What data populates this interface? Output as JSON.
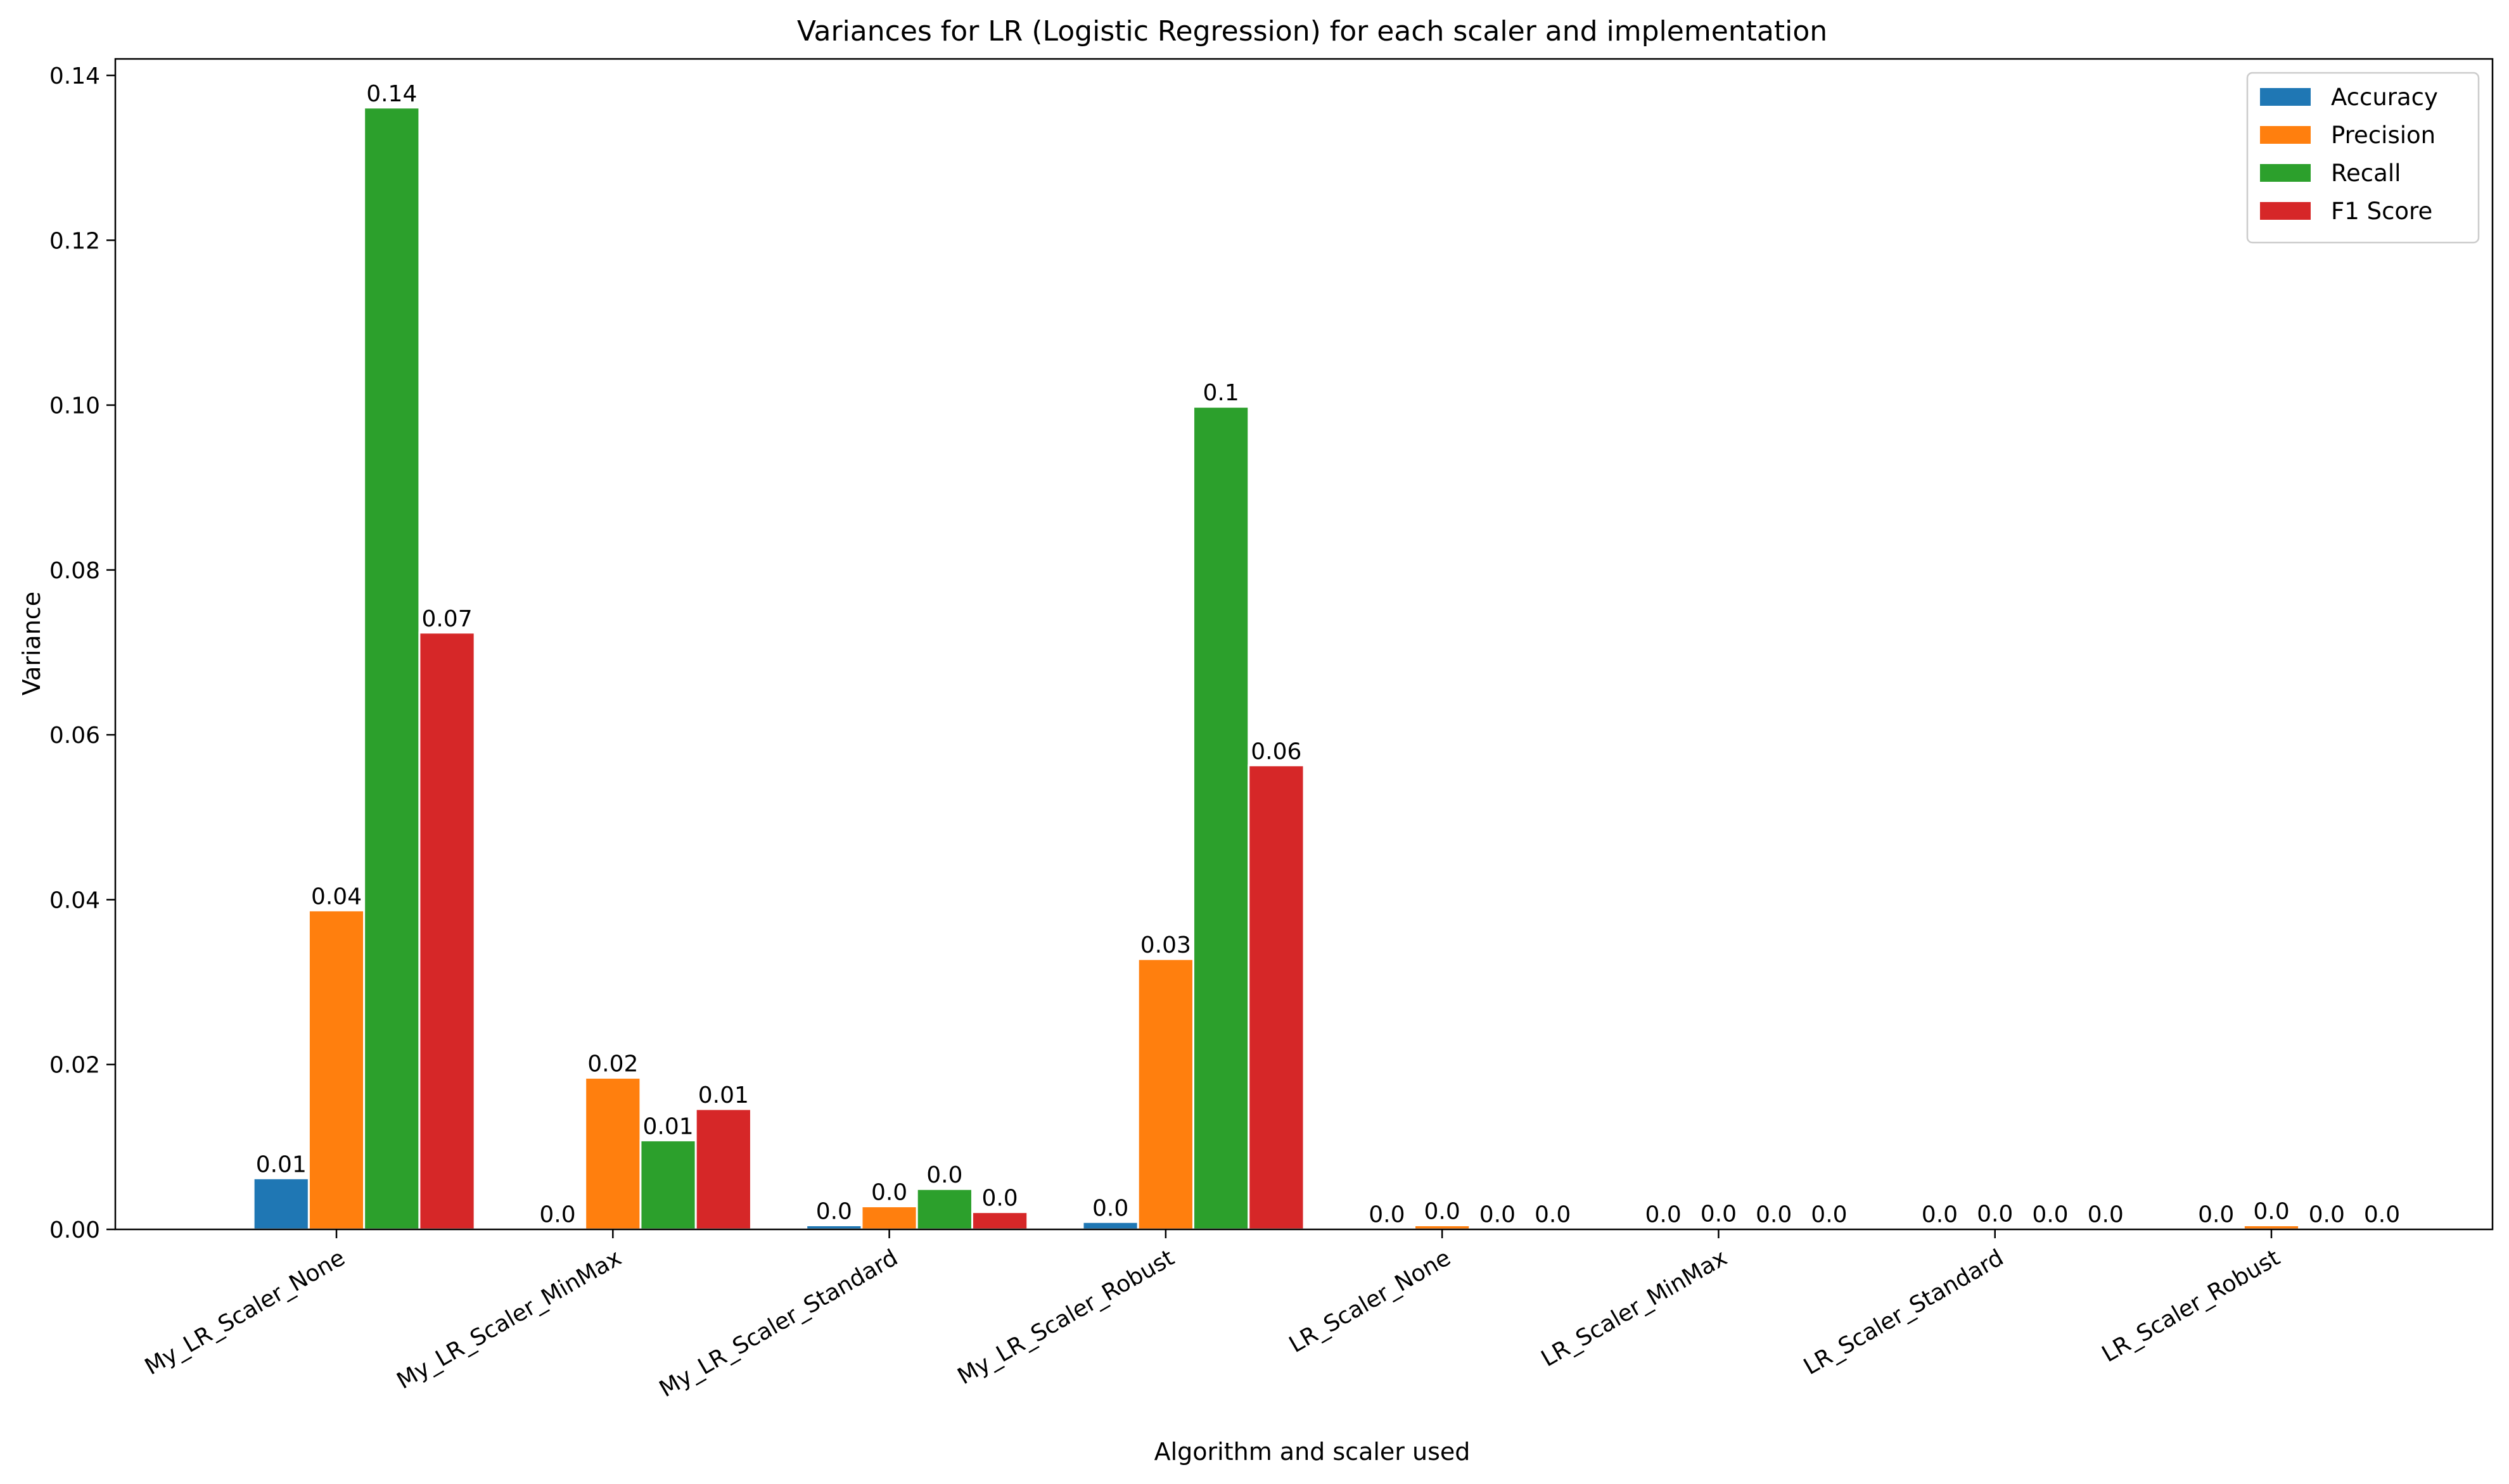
{
  "chart_data": {
    "type": "bar",
    "title": "Variances for LR (Logistic Regression) for each scaler and implementation",
    "xlabel": "Algorithm and scaler used",
    "ylabel": "Variance",
    "ylim": [
      0,
      0.142
    ],
    "yticks": [
      "0.00",
      "0.02",
      "0.04",
      "0.06",
      "0.08",
      "0.10",
      "0.12",
      "0.14"
    ],
    "ytick_values": [
      0,
      0.02,
      0.04,
      0.06,
      0.08,
      0.1,
      0.12,
      0.14
    ],
    "grid": false,
    "legend_position": "top-right",
    "categories": [
      "My_LR_Scaler_None",
      "My_LR_Scaler_MinMax",
      "My_LR_Scaler_Standard",
      "My_LR_Scaler_Robust",
      "LR_Scaler_None",
      "LR_Scaler_MinMax",
      "LR_Scaler_Standard",
      "LR_Scaler_Robust"
    ],
    "series": [
      {
        "name": "Accuracy",
        "color": "#1f77b4",
        "values": [
          0.0062,
          0.0001,
          0.0005,
          0.0009,
          0.0001,
          0.0001,
          0.0001,
          0.0001
        ],
        "labels": [
          "0.01",
          "0.0",
          "0.0",
          "0.0",
          "0.0",
          "0.0",
          "0.0",
          "0.0"
        ]
      },
      {
        "name": "Precision",
        "color": "#ff7f0e",
        "values": [
          0.0387,
          0.0184,
          0.0028,
          0.0328,
          0.0005,
          0.0002,
          0.0002,
          0.0005
        ],
        "labels": [
          "0.04",
          "0.02",
          "0.0",
          "0.03",
          "0.0",
          "0.0",
          "0.0",
          "0.0"
        ]
      },
      {
        "name": "Recall",
        "color": "#2ca02c",
        "values": [
          0.1361,
          0.0108,
          0.0049,
          0.0998,
          0.0001,
          0.0001,
          0.0001,
          0.0001
        ],
        "labels": [
          "0.14",
          "0.01",
          "0.0",
          "0.1",
          "0.0",
          "0.0",
          "0.0",
          "0.0"
        ]
      },
      {
        "name": "F1 Score",
        "color": "#d62728",
        "values": [
          0.0724,
          0.0146,
          0.0021,
          0.0563,
          0.0001,
          0.0001,
          0.0001,
          0.0001
        ],
        "labels": [
          "0.07",
          "0.01",
          "0.0",
          "0.06",
          "0.0",
          "0.0",
          "0.0",
          "0.0"
        ]
      }
    ]
  }
}
